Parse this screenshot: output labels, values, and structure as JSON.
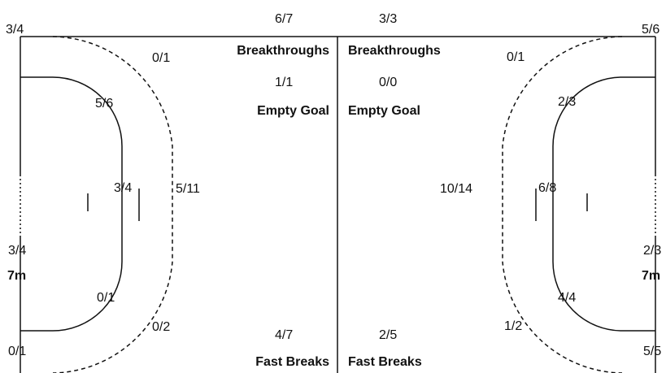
{
  "left_half": {
    "top_corner": "3/4",
    "upper_wing": "0/1",
    "upper_six": "5/6",
    "center_six": "3/4",
    "center_nine": "5/11",
    "seven_m": "3/4",
    "seven_m_label": "7m",
    "lower_six": "0/1",
    "lower_wing": "0/2",
    "bottom_corner": "0/1",
    "breakthroughs_value": "6/7",
    "breakthroughs_label": "Breakthroughs",
    "empty_goal_value": "1/1",
    "empty_goal_label": "Empty Goal",
    "fast_breaks_value": "4/7",
    "fast_breaks_label": "Fast Breaks"
  },
  "right_half": {
    "top_corner": "5/6",
    "upper_wing": "0/1",
    "upper_six": "2/3",
    "center_six": "6/8",
    "center_nine": "10/14",
    "seven_m": "2/3",
    "seven_m_label": "7m",
    "lower_six": "4/4",
    "lower_wing": "1/2",
    "bottom_corner": "5/5",
    "breakthroughs_value": "3/3",
    "breakthroughs_label": "Breakthroughs",
    "empty_goal_value": "0/0",
    "empty_goal_label": "Empty Goal",
    "fast_breaks_value": "2/5",
    "fast_breaks_label": "Fast Breaks"
  },
  "colors": {
    "line": "#111111",
    "background": "#ffffff"
  }
}
